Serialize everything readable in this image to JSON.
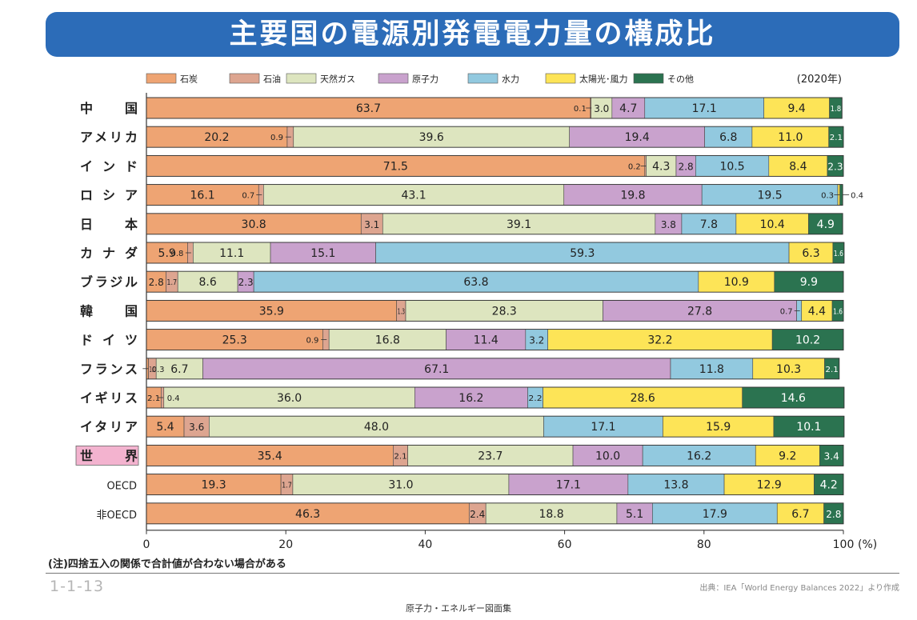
{
  "title": "主要国の電源別発電電力量の構成比",
  "year_note": "(2020年)",
  "note": "(注)四捨五入の関係で合計値が合わない場合がある",
  "figure_number": "1-1-13",
  "source": "出典：IEA「World Energy Balances 2022」より作成",
  "footer": "原子力・エネルギー図面集",
  "colors": {
    "coal": "#eea473",
    "oil": "#dda590",
    "gas": "#dde5bf",
    "nuclear": "#c9a2cd",
    "hydro": "#92c9df",
    "solar_wind": "#fde457",
    "other": "#2b7350",
    "world_label_bg": "#f3b3cf"
  },
  "chart_data": {
    "type": "bar",
    "orientation": "horizontal-stacked",
    "xlim": [
      0,
      100
    ],
    "xticks": [
      0,
      20,
      40,
      60,
      80,
      100
    ],
    "xunit": "(%)",
    "series_names": [
      "石炭",
      "石油",
      "天然ガス",
      "原子力",
      "水力",
      "太陽光･風力",
      "その他"
    ],
    "rows": [
      {
        "label": "中　国",
        "values": [
          63.7,
          0.1,
          3.0,
          4.7,
          17.1,
          9.4,
          1.8
        ]
      },
      {
        "label": "アメリカ",
        "values": [
          20.2,
          0.9,
          39.6,
          19.4,
          6.8,
          11.0,
          2.1
        ]
      },
      {
        "label": "イ ン ド",
        "values": [
          71.5,
          0.2,
          4.3,
          2.8,
          10.5,
          8.4,
          2.3
        ]
      },
      {
        "label": "ロ シ ア",
        "values": [
          16.1,
          0.7,
          43.1,
          19.8,
          19.5,
          0.3,
          0.4
        ]
      },
      {
        "label": "日　本",
        "values": [
          30.8,
          3.1,
          39.1,
          3.8,
          7.8,
          10.4,
          4.9
        ]
      },
      {
        "label": "カ ナ ダ",
        "values": [
          5.9,
          0.8,
          11.1,
          15.1,
          59.3,
          6.3,
          1.6
        ]
      },
      {
        "label": "ブラジル",
        "values": [
          2.8,
          1.7,
          8.6,
          2.3,
          63.8,
          10.9,
          9.9
        ]
      },
      {
        "label": "韓　国",
        "values": [
          35.9,
          1.3,
          28.3,
          27.8,
          0.7,
          4.4,
          1.6
        ]
      },
      {
        "label": "ド イ ツ",
        "values": [
          25.3,
          0.9,
          16.8,
          11.4,
          3.2,
          32.2,
          10.2
        ]
      },
      {
        "label": "フランス",
        "values": [
          0.3,
          1.1,
          6.7,
          67.1,
          11.8,
          10.3,
          2.1
        ]
      },
      {
        "label": "イギリス",
        "values": [
          2.1,
          0.4,
          36.0,
          16.2,
          2.2,
          28.6,
          14.6
        ]
      },
      {
        "label": "イタリア",
        "values": [
          5.4,
          3.6,
          48.0,
          0.0,
          17.1,
          15.9,
          10.1
        ]
      },
      {
        "label": "世　界",
        "values": [
          35.4,
          2.1,
          23.7,
          10.0,
          16.2,
          9.2,
          3.4
        ]
      },
      {
        "label": "OECD",
        "values": [
          19.3,
          1.7,
          31.0,
          17.1,
          13.8,
          12.9,
          4.2
        ]
      },
      {
        "label": "非OECD",
        "values": [
          46.3,
          2.4,
          18.8,
          5.1,
          17.9,
          6.7,
          2.8
        ]
      }
    ],
    "value_labels": [
      [
        "63.7",
        "0.1",
        "3.0",
        "4.7",
        "17.1",
        "9.4",
        "1.8"
      ],
      [
        "20.2",
        "0.9",
        "39.6",
        "19.4",
        "6.8",
        "11.0",
        "2.1"
      ],
      [
        "71.5",
        "0.2",
        "4.3",
        "2.8",
        "10.5",
        "8.4",
        "2.3"
      ],
      [
        "16.1",
        "0.7",
        "43.1",
        "19.8",
        "19.5",
        "0.3",
        "0.4"
      ],
      [
        "30.8",
        "3.1",
        "39.1",
        "3.8",
        "7.8",
        "10.4",
        "4.9"
      ],
      [
        "5.9",
        "0.8",
        "11.1",
        "15.1",
        "59.3",
        "6.3",
        "1.6"
      ],
      [
        "2.8",
        "1.7",
        "8.6",
        "2.3",
        "63.8",
        "10.9",
        "9.9"
      ],
      [
        "35.9",
        "1.3",
        "28.3",
        "27.8",
        "0.7",
        "4.4",
        "1.6"
      ],
      [
        "25.3",
        "0.9",
        "16.8",
        "11.4",
        "3.2",
        "32.2",
        "10.2"
      ],
      [
        "0.3",
        "1.1",
        "6.7",
        "67.1",
        "11.8",
        "10.3",
        "2.1"
      ],
      [
        "2.1",
        "0.4",
        "36.0",
        "16.2",
        "2.2",
        "28.6",
        "14.6"
      ],
      [
        "5.4",
        "3.6",
        "48.0",
        "",
        "17.1",
        "15.9",
        "10.1"
      ],
      [
        "35.4",
        "2.1",
        "23.7",
        "10.0",
        "16.2",
        "9.2",
        "3.4"
      ],
      [
        "19.3",
        "1.7",
        "31.0",
        "17.1",
        "13.8",
        "12.9",
        "4.2"
      ],
      [
        "46.3",
        "2.4",
        "18.8",
        "5.1",
        "17.9",
        "6.7",
        "2.8"
      ]
    ],
    "highlight_row": "世　界"
  }
}
